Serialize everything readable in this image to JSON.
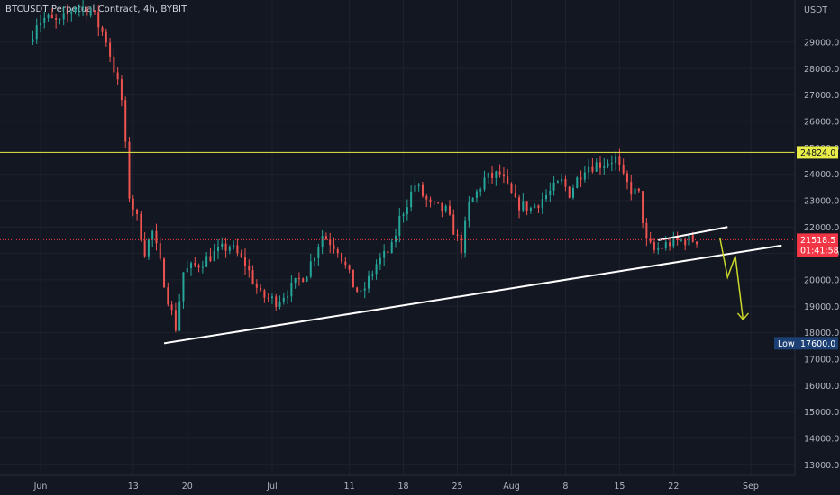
{
  "header": {
    "symbol_title": "BTCUSDT Perpetual Contract, 4h, BYBIT"
  },
  "chart_data": {
    "type": "candlestick",
    "currency_label": "USDT",
    "y_ticks": [
      "29000.0",
      "28000.0",
      "27000.0",
      "26000.0",
      "25000.0",
      "24000.0",
      "23000.0",
      "22000.0",
      "21000.0",
      "20000.0",
      "19000.0",
      "18000.0",
      "17000.0",
      "16000.0",
      "15000.0",
      "14000.0",
      "13000.0"
    ],
    "x_ticks": [
      "Jun",
      "13",
      "20",
      "Jul",
      "11",
      "18",
      "25",
      "Aug",
      "8",
      "15",
      "22",
      "Sep"
    ],
    "x_tick_dates": [
      "2022-06-01",
      "2022-06-13",
      "2022-06-20",
      "2022-07-01",
      "2022-07-11",
      "2022-07-18",
      "2022-07-25",
      "2022-08-01",
      "2022-08-08",
      "2022-08-15",
      "2022-08-22",
      "2022-09-01"
    ],
    "ylim": [
      12600,
      30600
    ],
    "xlim": [
      "2022-06-01",
      "2022-09-05"
    ],
    "price_path": [
      [
        "2022-05-31",
        29000
      ],
      [
        "2022-06-01",
        29800
      ],
      [
        "2022-06-02",
        29900
      ],
      [
        "2022-06-04",
        29700
      ],
      [
        "2022-06-06",
        30400
      ],
      [
        "2022-06-08",
        30200
      ],
      [
        "2022-06-10",
        29100
      ],
      [
        "2022-06-11",
        28000
      ],
      [
        "2022-06-12",
        26800
      ],
      [
        "2022-06-13",
        23200
      ],
      [
        "2022-06-14",
        22300
      ],
      [
        "2022-06-15",
        21100
      ],
      [
        "2022-06-16",
        21800
      ],
      [
        "2022-06-17",
        20600
      ],
      [
        "2022-06-18",
        19300
      ],
      [
        "2022-06-19",
        18200
      ],
      [
        "2022-06-20",
        20300
      ],
      [
        "2022-06-22",
        20600
      ],
      [
        "2022-06-24",
        21000
      ],
      [
        "2022-06-26",
        21300
      ],
      [
        "2022-06-28",
        20600
      ],
      [
        "2022-06-30",
        19400
      ],
      [
        "2022-07-02",
        19200
      ],
      [
        "2022-07-04",
        19700
      ],
      [
        "2022-07-06",
        20300
      ],
      [
        "2022-07-08",
        21700
      ],
      [
        "2022-07-10",
        21200
      ],
      [
        "2022-07-12",
        19800
      ],
      [
        "2022-07-13",
        19400
      ],
      [
        "2022-07-15",
        20600
      ],
      [
        "2022-07-17",
        21200
      ],
      [
        "2022-07-18",
        22300
      ],
      [
        "2022-07-20",
        23600
      ],
      [
        "2022-07-22",
        22800
      ],
      [
        "2022-07-24",
        22600
      ],
      [
        "2022-07-26",
        21200
      ],
      [
        "2022-07-27",
        22800
      ],
      [
        "2022-07-29",
        23800
      ],
      [
        "2022-07-31",
        24000
      ],
      [
        "2022-08-02",
        22900
      ],
      [
        "2022-08-04",
        22700
      ],
      [
        "2022-08-06",
        23200
      ],
      [
        "2022-08-08",
        23700
      ],
      [
        "2022-08-09",
        23300
      ],
      [
        "2022-08-11",
        24300
      ],
      [
        "2022-08-13",
        24400
      ],
      [
        "2022-08-15",
        24600
      ],
      [
        "2022-08-16",
        23800
      ],
      [
        "2022-08-17",
        23400
      ],
      [
        "2022-08-18",
        23200
      ],
      [
        "2022-08-19",
        21400
      ],
      [
        "2022-08-20",
        21100
      ],
      [
        "2022-08-22",
        21400
      ],
      [
        "2022-08-24",
        21500
      ],
      [
        "2022-08-25",
        21518.5
      ]
    ],
    "horizontal_level": {
      "price": 24824.0,
      "label": "24824.0",
      "color": "#e9ed48"
    },
    "current_price": {
      "price": 21518.5,
      "label": "21518.5",
      "countdown": "01:41:58",
      "color": "#f23645"
    },
    "low_marker": {
      "label": "Low",
      "price": 17600.0,
      "price_label": "17600.0",
      "color": "#1c3f74"
    },
    "trendlines": [
      {
        "color": "#ffffff",
        "from": [
          "2022-06-17",
          17600
        ],
        "to": [
          "2022-09-05",
          21300
        ]
      },
      {
        "color": "#ffffff",
        "from": [
          "2022-08-20",
          21500
        ],
        "to": [
          "2022-08-29",
          22000
        ]
      }
    ],
    "projection_arrow": {
      "color": "#c9d62a",
      "path": [
        [
          "2022-08-28",
          21600
        ],
        [
          "2022-08-29",
          20100
        ],
        [
          "2022-08-30",
          20900
        ],
        [
          "2022-08-31",
          18500
        ]
      ]
    },
    "colors": {
      "up": "#26a69a",
      "down": "#ef5350",
      "background": "#131722",
      "grid": "#1e222d",
      "axis_text": "#b2b5be"
    }
  }
}
